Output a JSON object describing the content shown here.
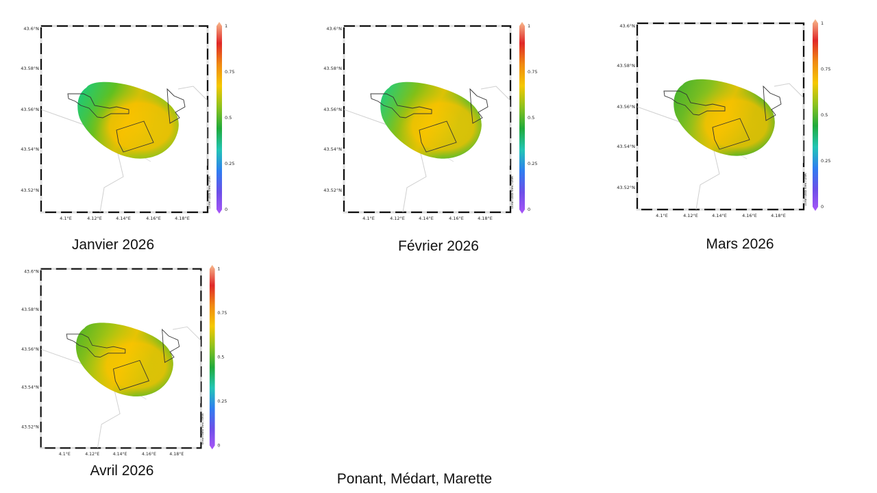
{
  "lat_labels": [
    "43.6°N",
    "43.58°N",
    "43.56°N",
    "43.54°N",
    "43.52°N"
  ],
  "lon_labels": [
    "4.1°E",
    "4.12°E",
    "4.14°E",
    "4.16°E",
    "4.18°E"
  ],
  "colorbar": {
    "ticks": [
      "0",
      "0.25",
      "0.5",
      "0.75",
      "1"
    ],
    "stops": [
      "#a855f7",
      "#6d4fe8",
      "#2f7df0",
      "#22c5b5",
      "#1faa3b",
      "#8dc21e",
      "#f5c800",
      "#f08a12",
      "#e02828",
      "#f7b98c"
    ]
  },
  "credit": "Ocean Data View / DIVA",
  "panels": [
    {
      "caption": "Janvier 2026",
      "palette": {
        "west": "#10cc88",
        "mid": "#60c020",
        "hot": "#fcc400",
        "east": "#8cc420",
        "south": "#f4c000"
      }
    },
    {
      "caption": "Février 2026",
      "palette": {
        "west": "#12cf8c",
        "mid": "#80c018",
        "hot": "#fac800",
        "east": "#2cb83c",
        "south": "#f4c200"
      }
    },
    {
      "caption": "Mars 2026",
      "palette": {
        "west": "#3bb030",
        "mid": "#86c01e",
        "hot": "#ffc400",
        "east": "#20aa30",
        "south": "#f4c100"
      }
    },
    {
      "caption": "Avril 2026",
      "palette": {
        "west": "#48b428",
        "mid": "#a6c412",
        "hot": "#f6c800",
        "east": "#3cb42c",
        "south": "#f7c300"
      }
    }
  ],
  "footer": "Ponant, Médart, Marette"
}
